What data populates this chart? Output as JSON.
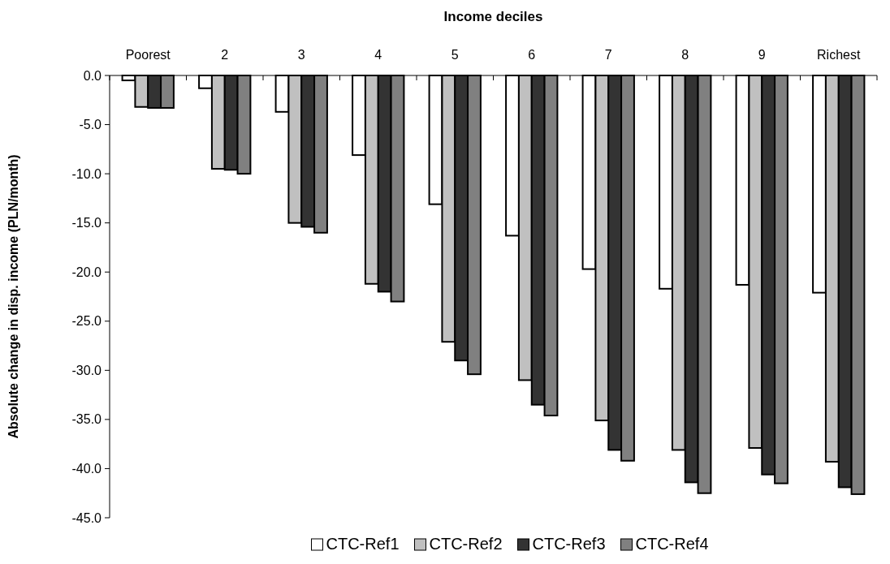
{
  "chart_data": {
    "type": "bar",
    "xlabel": "Income deciles",
    "ylabel": "Absolute change in disp. income (PLN/month)",
    "categories": [
      "Poorest",
      "2",
      "3",
      "4",
      "5",
      "6",
      "7",
      "8",
      "9",
      "Richest"
    ],
    "series": [
      {
        "name": "CTC-Ref1",
        "color": "#ffffff",
        "values": [
          -0.5,
          -1.3,
          -3.7,
          -8.1,
          -13.1,
          -16.3,
          -19.7,
          -21.7,
          -21.3,
          -22.1
        ]
      },
      {
        "name": "CTC-Ref2",
        "color": "#c0c0c0",
        "values": [
          -3.2,
          -9.5,
          -15.0,
          -21.2,
          -27.1,
          -31.0,
          -35.1,
          -38.1,
          -37.9,
          -39.3
        ]
      },
      {
        "name": "CTC-Ref3",
        "color": "#333333",
        "values": [
          -3.3,
          -9.6,
          -15.4,
          -22.0,
          -29.0,
          -33.5,
          -38.1,
          -41.4,
          -40.6,
          -41.9
        ]
      },
      {
        "name": "CTC-Ref4",
        "color": "#808080",
        "values": [
          -3.3,
          -10.0,
          -16.0,
          -23.0,
          -30.4,
          -34.6,
          -39.2,
          -42.5,
          -41.5,
          -42.6
        ]
      }
    ],
    "ylim": [
      -45,
      0
    ],
    "yticks": [
      {
        "value": 0,
        "label": "0.0"
      },
      {
        "value": -5,
        "label": "-5.0"
      },
      {
        "value": -10,
        "label": "-10.0"
      },
      {
        "value": -15,
        "label": "-15.0"
      },
      {
        "value": -20,
        "label": "-20.0"
      },
      {
        "value": -25,
        "label": "-25.0"
      },
      {
        "value": -30,
        "label": "-30.0"
      },
      {
        "value": -35,
        "label": "-35.0"
      },
      {
        "value": -40,
        "label": "-40.0"
      },
      {
        "value": -45,
        "label": "-45.0"
      }
    ],
    "grid": false,
    "legend": "bottom"
  }
}
